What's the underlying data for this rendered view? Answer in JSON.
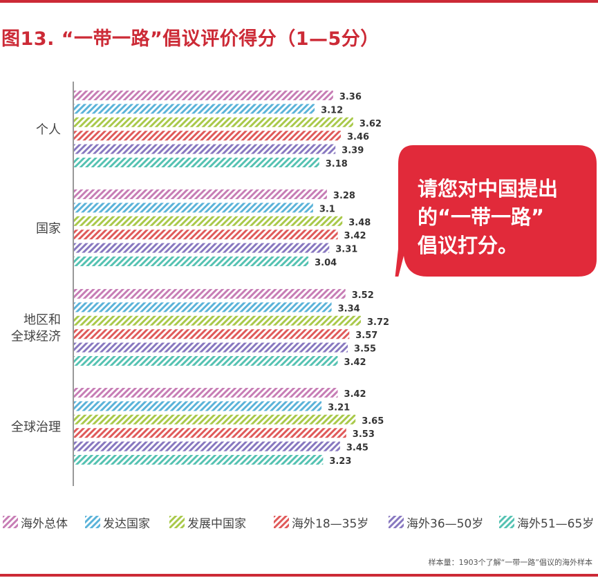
{
  "title": "图13. “一带一路”倡议评价得分（1—5分）",
  "callout": {
    "lines": [
      "请您对中国提出",
      "的“一带一路”",
      "倡议打分。"
    ]
  },
  "footnote": "样本量：1903个了解“一带一路”倡议的海外样本",
  "colors": {
    "accent": "#cc2a36",
    "series": [
      "#c77db5",
      "#5bb3d9",
      "#a9c94a",
      "#e05a5a",
      "#8878c0",
      "#55c2b2"
    ]
  },
  "chart_data": {
    "type": "bar",
    "orientation": "horizontal",
    "bar_fill": "diagonal-hatch",
    "categories": [
      {
        "lines": [
          "个人"
        ]
      },
      {
        "lines": [
          "国家"
        ]
      },
      {
        "lines": [
          "地区和",
          "全球经济"
        ]
      },
      {
        "lines": [
          "全球治理"
        ]
      }
    ],
    "series": [
      {
        "name": "海外总体",
        "values": [
          3.36,
          3.28,
          3.52,
          3.42
        ]
      },
      {
        "name": "发达国家",
        "values": [
          3.12,
          3.1,
          3.34,
          3.21
        ]
      },
      {
        "name": "发展中国家",
        "values": [
          3.62,
          3.48,
          3.72,
          3.65
        ]
      },
      {
        "name": "海外18—35岁",
        "values": [
          3.46,
          3.42,
          3.57,
          3.53
        ]
      },
      {
        "name": "海外36—50岁",
        "values": [
          3.39,
          3.31,
          3.55,
          3.45
        ]
      },
      {
        "name": "海外51—65岁",
        "values": [
          3.18,
          3.04,
          3.42,
          3.23
        ]
      }
    ],
    "xlim": [
      0,
      3.72
    ],
    "grid": false,
    "legend_position": "bottom"
  }
}
